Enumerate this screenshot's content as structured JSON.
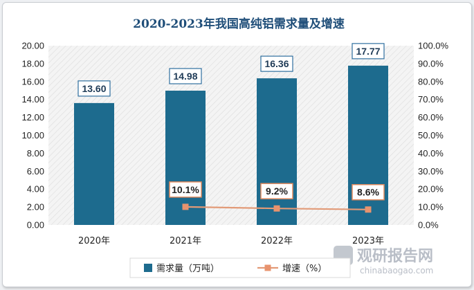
{
  "chart_data": {
    "type": "bar",
    "title": "2020-2023年我国高纯铝需求量及增速",
    "categories": [
      "2020年",
      "2021年",
      "2022年",
      "2023年"
    ],
    "series": [
      {
        "name": "需求量（万吨）",
        "type": "bar",
        "axis": "left",
        "values": [
          13.6,
          14.98,
          16.36,
          17.77
        ],
        "labels": [
          "13.60",
          "14.98",
          "16.36",
          "17.77"
        ]
      },
      {
        "name": "增速（%）",
        "type": "line",
        "axis": "right",
        "values": [
          null,
          10.1,
          9.2,
          8.6
        ],
        "labels": [
          "",
          "10.1%",
          "9.2%",
          "8.6%"
        ]
      }
    ],
    "y_left": {
      "min": 0,
      "max": 20,
      "step": 2,
      "tick_labels": [
        "0.00",
        "2.00",
        "4.00",
        "6.00",
        "8.00",
        "10.00",
        "12.00",
        "14.00",
        "16.00",
        "18.00",
        "20.00"
      ]
    },
    "y_right": {
      "min": 0,
      "max": 100,
      "step": 10,
      "tick_labels": [
        "0.0%",
        "10.0%",
        "20.0%",
        "30.0%",
        "40.0%",
        "50.0%",
        "60.0%",
        "70.0%",
        "80.0%",
        "90.0%",
        "100.0%"
      ]
    },
    "legend": {
      "position": "bottom",
      "items": [
        "需求量（万吨）",
        "增速（%）"
      ]
    },
    "grid": false,
    "colors": {
      "bar": "#1d6b8e",
      "line": "#e29a77",
      "marker": "#e8936e",
      "title": "#1f4e79",
      "plot_bg": "#f2f2f2",
      "label_border": "#2f6f9f",
      "line_label_border": "#e08a5e"
    }
  },
  "watermark": {
    "name_cn": "观研报告网",
    "name_en": "chinabaogao.com"
  }
}
